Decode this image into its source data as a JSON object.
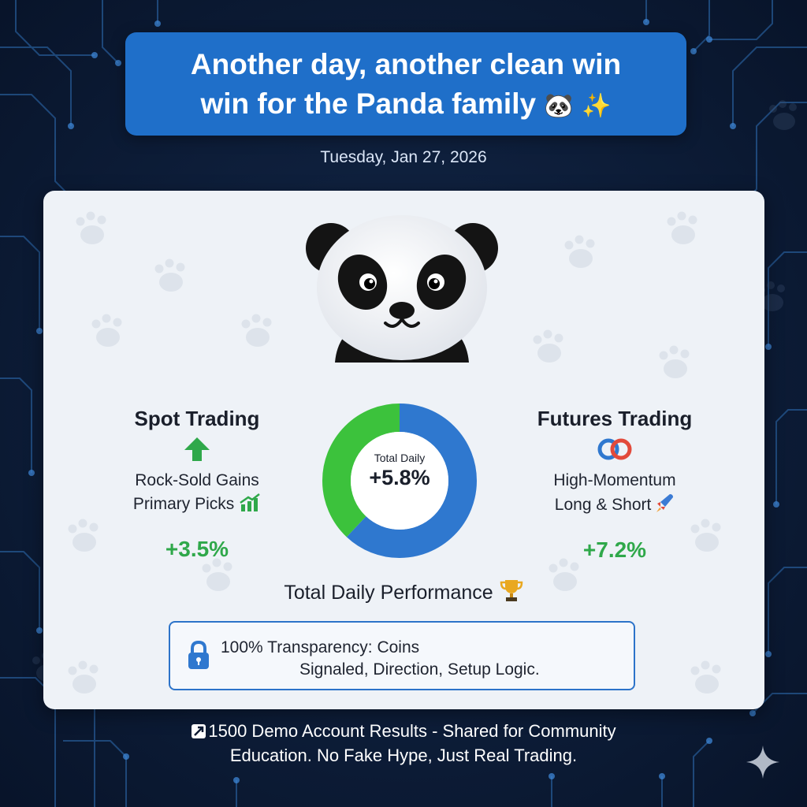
{
  "header": {
    "title_line1": "Another day, another clean win",
    "title_line2": "win for the Panda family",
    "title_emojis": "🐼 ✨",
    "date": "Tuesday, Jan 27, 2026"
  },
  "spot": {
    "title": "Spot Trading",
    "line1": "Rock-Sold Gains",
    "line2": "Primary Picks",
    "value": "+3.5%",
    "icon": "green-up-arrow-icon"
  },
  "futures": {
    "title": "Futures Trading",
    "line1": "High-Momentum",
    "line2": "Long & Short",
    "value": "+7.2%",
    "icon": "linked-rings-icon"
  },
  "donut": {
    "label": "Total Daily",
    "value": "+5.8%",
    "fraction_green": 0.38,
    "colors": {
      "green": "#3cc23c",
      "blue": "#2f78cf"
    }
  },
  "performance": {
    "label": "Total Daily Performance"
  },
  "transparency": {
    "line1": "100% Transparency: Coins",
    "line2": "Signaled, Direction, Setup Logic."
  },
  "footer": {
    "line1": "1500 Demo Account Results - Shared for Community",
    "line2": "Education. No Fake Hype, Just Real Trading."
  },
  "colors": {
    "title_bg": "#1f6fc9",
    "page_bg": "#0b1a33",
    "card_bg": "#eef2f7",
    "positive": "#2fa84a"
  }
}
